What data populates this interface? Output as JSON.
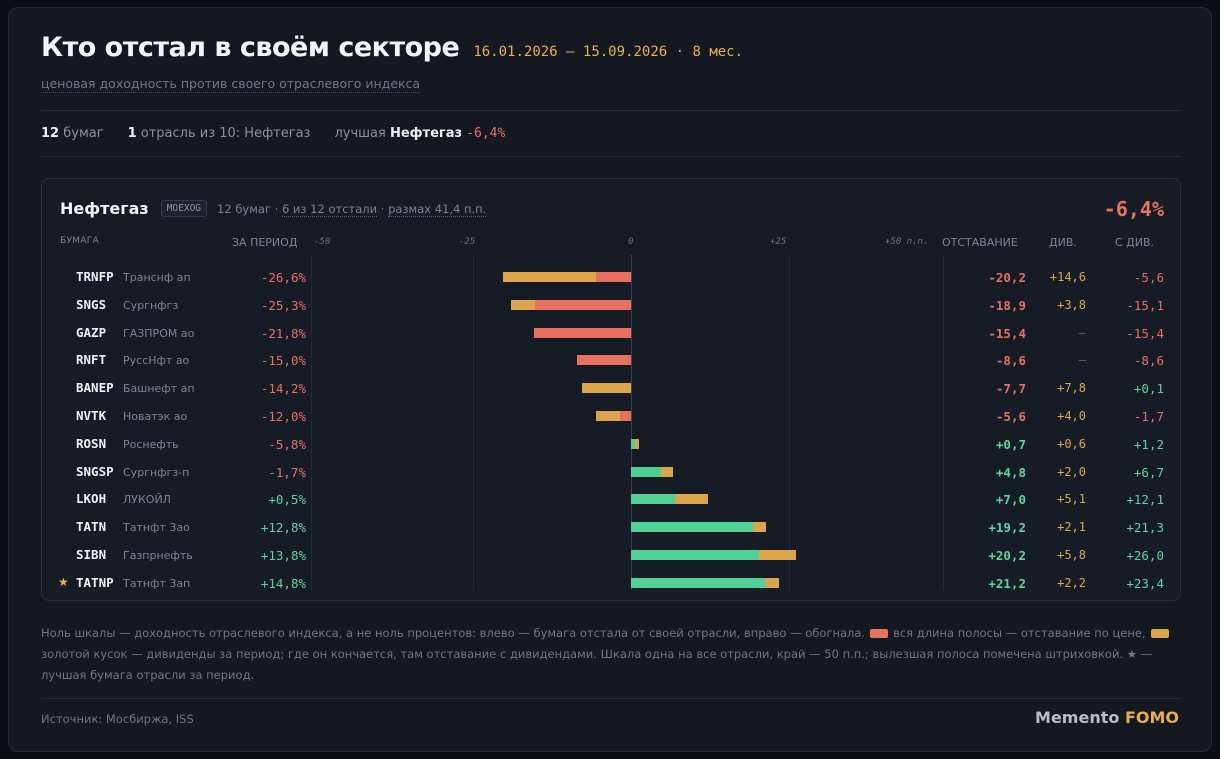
{
  "header": {
    "title": "Кто отстал в своём секторе",
    "period": "16.01.2026 — 15.09.2026 · 8 мес.",
    "subtitle": "ценовая доходность против своего отраслевого индекса"
  },
  "summary": {
    "count": "12",
    "count_label": "бумаг",
    "sectors": "1",
    "sectors_label": "отрасль из 10: Нефтегаз",
    "best_label": "лучшая",
    "best_sector": "Нефтегаз",
    "best_value": "-6,4%"
  },
  "card": {
    "title": "Нефтегаз",
    "index_tag": "MOEXOG",
    "meta_count": "12 бумаг ·",
    "meta_lagging": "6 из 12 отстали",
    "meta_sep": "·",
    "meta_spread": "размах 41,4 п.п.",
    "total": "-6,4%",
    "columns": {
      "security": "БУМАГА",
      "period": "ЗА ПЕРИОД",
      "lag": "ОТСТАВАНИЕ",
      "div": "ДИВ.",
      "with_div": "С ДИВ."
    },
    "tick_labels": [
      "-50",
      "-25",
      "0",
      "+25",
      "+50 п.п."
    ]
  },
  "chart_data": {
    "type": "bar",
    "orientation": "horizontal",
    "xlim": [
      -50,
      50
    ],
    "unit": "п.п.",
    "colors": {
      "price": "#e8705f",
      "dividend": "#dca54a",
      "positive": "#4fd094"
    },
    "rows": [
      {
        "ticker": "TRNFP",
        "name": "Транснф ап",
        "period": "-26,6%",
        "lag": -20.2,
        "lag_label": "-20,2",
        "div": 14.6,
        "div_label": "+14,6",
        "with_div": -5.6,
        "with_div_label": "-5,6",
        "best": false
      },
      {
        "ticker": "SNGS",
        "name": "Сургнфгз",
        "period": "-25,3%",
        "lag": -18.9,
        "lag_label": "-18,9",
        "div": 3.8,
        "div_label": "+3,8",
        "with_div": -15.1,
        "with_div_label": "-15,1",
        "best": false
      },
      {
        "ticker": "GAZP",
        "name": "ГАЗПРОМ ао",
        "period": "-21,8%",
        "lag": -15.4,
        "lag_label": "-15,4",
        "div": 0,
        "div_label": "—",
        "with_div": -15.4,
        "with_div_label": "-15,4",
        "best": false
      },
      {
        "ticker": "RNFT",
        "name": "РуссНфт ао",
        "period": "-15,0%",
        "lag": -8.6,
        "lag_label": "-8,6",
        "div": 0,
        "div_label": "—",
        "with_div": -8.6,
        "with_div_label": "-8,6",
        "best": false
      },
      {
        "ticker": "BANEP",
        "name": "Башнефт ап",
        "period": "-14,2%",
        "lag": -7.7,
        "lag_label": "-7,7",
        "div": 7.8,
        "div_label": "+7,8",
        "with_div": 0.1,
        "with_div_label": "+0,1",
        "best": false
      },
      {
        "ticker": "NVTK",
        "name": "Новатэк ао",
        "period": "-12,0%",
        "lag": -5.6,
        "lag_label": "-5,6",
        "div": 4.0,
        "div_label": "+4,0",
        "with_div": -1.7,
        "with_div_label": "-1,7",
        "best": false
      },
      {
        "ticker": "ROSN",
        "name": "Роснефть",
        "period": "-5,8%",
        "lag": 0.7,
        "lag_label": "+0,7",
        "div": 0.6,
        "div_label": "+0,6",
        "with_div": 1.2,
        "with_div_label": "+1,2",
        "best": false
      },
      {
        "ticker": "SNGSP",
        "name": "Сургнфгз-п",
        "period": "-1,7%",
        "lag": 4.8,
        "lag_label": "+4,8",
        "div": 2.0,
        "div_label": "+2,0",
        "with_div": 6.7,
        "with_div_label": "+6,7",
        "best": false
      },
      {
        "ticker": "LKOH",
        "name": "ЛУКОЙЛ",
        "period": "+0,5%",
        "lag": 7.0,
        "lag_label": "+7,0",
        "div": 5.1,
        "div_label": "+5,1",
        "with_div": 12.1,
        "with_div_label": "+12,1",
        "best": false
      },
      {
        "ticker": "TATN",
        "name": "Татнфт 3ао",
        "period": "+12,8%",
        "lag": 19.2,
        "lag_label": "+19,2",
        "div": 2.1,
        "div_label": "+2,1",
        "with_div": 21.3,
        "with_div_label": "+21,3",
        "best": false
      },
      {
        "ticker": "SIBN",
        "name": "Газпрнефть",
        "period": "+13,8%",
        "lag": 20.2,
        "lag_label": "+20,2",
        "div": 5.8,
        "div_label": "+5,8",
        "with_div": 26.0,
        "with_div_label": "+26,0",
        "best": false
      },
      {
        "ticker": "TATNP",
        "name": "Татнфт 3ап",
        "period": "+14,8%",
        "lag": 21.2,
        "lag_label": "+21,2",
        "div": 2.2,
        "div_label": "+2,2",
        "with_div": 23.4,
        "with_div_label": "+23,4",
        "best": true
      }
    ]
  },
  "footer": {
    "note_part1": "Ноль шкалы — доходность отраслевого индекса, а не ноль процентов: влево — бумага отстала от своей отрасли, вправо — обогнала.",
    "note_part2": "вся длина полосы — отставание по цене,",
    "note_part3": "золотой кусок — дивиденды за период; где он кончается, там отставание с дивидендами. Шкала одна на все отрасли, край — 50 п.п.; вылезшая полоса помечена штриховкой. ★ — лучшая бумага отрасли за период.",
    "star_symbol": "★",
    "source": "Источник: Мосбиржа, ISS",
    "brand_left": "Memento",
    "brand_right": "FOMO"
  }
}
